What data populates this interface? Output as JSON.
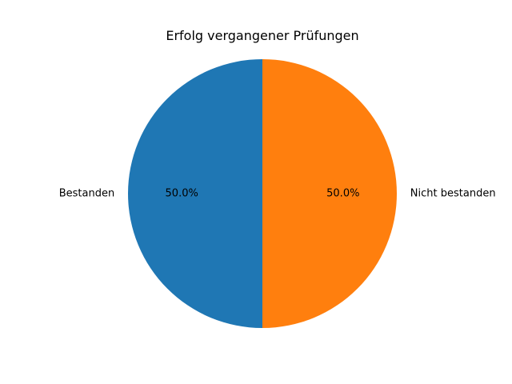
{
  "chart_data": {
    "type": "pie",
    "title": "Erfolg vergangener Prüfungen",
    "labels": [
      "Bestanden",
      "Nicht bestanden"
    ],
    "values": [
      50,
      50
    ],
    "percent_labels": [
      "50.0%",
      "50.0%"
    ],
    "colors": [
      "#1f77b4",
      "#ff7f0e"
    ],
    "start_angle": 90,
    "direction": "counterclockwise"
  }
}
